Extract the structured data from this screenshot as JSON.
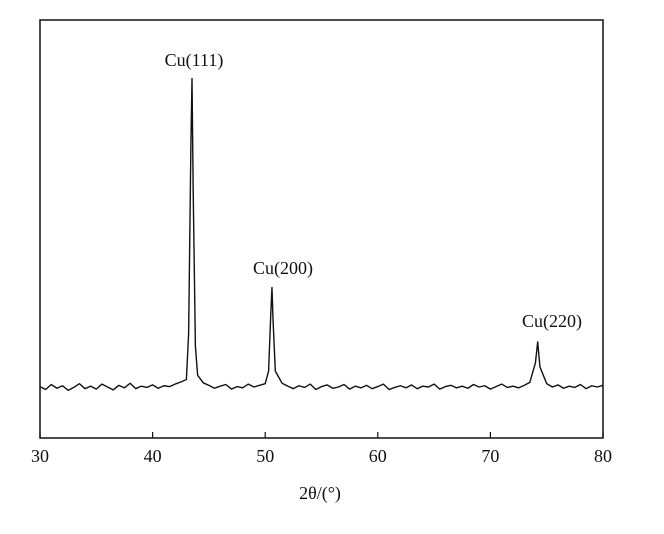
{
  "chart_data": {
    "type": "line",
    "xlabel": "2θ/(°)",
    "annotations": [
      "Cu(111)",
      "Cu(200)",
      "Cu(220)"
    ],
    "xlim": [
      30,
      80
    ],
    "xticks": [
      30,
      40,
      50,
      60,
      70,
      80
    ],
    "ylim": [
      0,
      100
    ],
    "series": [
      {
        "color": "#111111",
        "x": [
          30,
          30.5,
          31,
          31.5,
          32,
          32.5,
          33,
          33.5,
          34,
          34.5,
          35,
          35.5,
          36,
          36.5,
          37,
          37.5,
          38,
          38.5,
          39,
          39.5,
          40,
          40.5,
          41,
          41.5,
          42,
          42.5,
          43,
          43.2,
          43.4,
          43.5,
          43.6,
          43.8,
          44,
          44.5,
          45,
          45.5,
          46,
          46.5,
          47,
          47.5,
          48,
          48.5,
          49,
          49.5,
          50,
          50.3,
          50.5,
          50.6,
          50.7,
          50.9,
          51.5,
          52,
          52.5,
          53,
          53.5,
          54,
          54.5,
          55,
          55.5,
          56,
          56.5,
          57,
          57.5,
          58,
          58.5,
          59,
          59.5,
          60,
          60.5,
          61,
          61.5,
          62,
          62.5,
          63,
          63.5,
          64,
          64.5,
          65,
          65.5,
          66,
          66.5,
          67,
          67.5,
          68,
          68.5,
          69,
          69.5,
          70,
          70.5,
          71,
          71.5,
          72,
          72.5,
          73,
          73.5,
          74,
          74.2,
          74.4,
          75,
          75.5,
          76,
          76.5,
          77,
          77.5,
          78,
          78.5,
          79,
          79.5,
          80
        ],
        "values": [
          12.3,
          11.6,
          12.8,
          11.9,
          12.5,
          11.4,
          12.1,
          13.0,
          11.8,
          12.4,
          11.7,
          12.9,
          12.2,
          11.5,
          12.6,
          12.0,
          13.1,
          11.8,
          12.4,
          12.1,
          12.7,
          11.9,
          12.5,
          12.3,
          12.9,
          13.4,
          14,
          25,
          70,
          86,
          60,
          22,
          15,
          13.2,
          12.6,
          11.9,
          12.4,
          12.8,
          11.7,
          12.3,
          12.0,
          12.9,
          12.2,
          12.6,
          13.0,
          16,
          30,
          36,
          28,
          16,
          13.1,
          12.4,
          11.8,
          12.5,
          12.1,
          12.9,
          11.6,
          12.3,
          12.7,
          11.9,
          12.2,
          12.8,
          11.7,
          12.4,
          12.0,
          12.6,
          11.8,
          12.3,
          12.9,
          11.6,
          12.1,
          12.5,
          12.0,
          12.7,
          11.8,
          12.4,
          12.2,
          12.9,
          11.7,
          12.3,
          12.6,
          12.0,
          12.4,
          11.9,
          12.8,
          12.2,
          12.5,
          11.7,
          12.3,
          12.9,
          12.1,
          12.4,
          12.0,
          12.6,
          13.3,
          18,
          23,
          17,
          13.0,
          12.2,
          12.7,
          11.9,
          12.4,
          12.1,
          12.8,
          11.8,
          12.5,
          12.2,
          12.6
        ]
      }
    ]
  }
}
